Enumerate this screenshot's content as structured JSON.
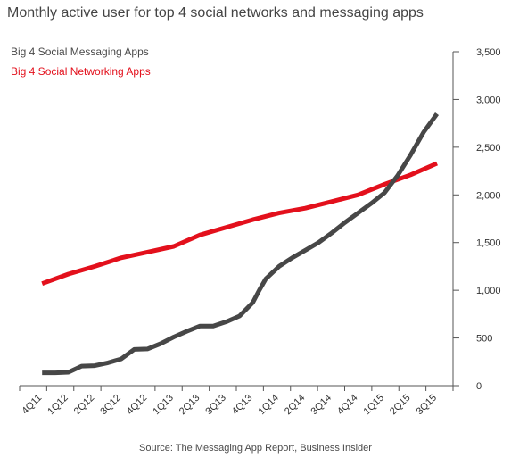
{
  "chart_data": {
    "type": "line",
    "title": "Monthly active user for top 4 social networks and messaging apps",
    "source": "Source: The Messaging App Report, Business Insider",
    "categories": [
      "4Q11",
      "1Q12",
      "2Q12",
      "3Q12",
      "4Q12",
      "1Q13",
      "2Q13",
      "3Q13",
      "4Q13",
      "1Q14",
      "2Q14",
      "3Q14",
      "4Q14",
      "1Q15",
      "2Q15",
      "3Q15"
    ],
    "ylim": [
      0,
      3500
    ],
    "yticks": [
      "0",
      "500",
      "1,000",
      "1,500",
      "2,000",
      "2,500",
      "3,000",
      "3,500"
    ],
    "ytick_values": [
      0,
      500,
      1000,
      1500,
      2000,
      2500,
      3000,
      3500
    ],
    "legend_position": "top-left",
    "grid": false,
    "series": [
      {
        "name": "Big 4 Social Messaging Apps",
        "color": "#474747",
        "x": [
          0,
          0.5,
          1,
          1.5,
          2,
          2.5,
          3,
          3.5,
          4,
          4.5,
          5,
          5.5,
          6,
          6.5,
          7,
          7.5,
          8,
          8.25,
          8.5,
          9,
          9.5,
          10,
          10.5,
          11,
          11.5,
          12,
          12.5,
          13,
          13.5,
          14,
          14.5,
          15
        ],
        "values": [
          135,
          135,
          140,
          205,
          210,
          240,
          280,
          380,
          385,
          440,
          510,
          570,
          625,
          625,
          670,
          730,
          870,
          1000,
          1120,
          1250,
          1340,
          1420,
          1500,
          1600,
          1710,
          1810,
          1910,
          2020,
          2200,
          2420,
          2660,
          2850
        ]
      },
      {
        "name": "Big 4 Social Networking Apps",
        "color": "#e3101c",
        "x": [
          0,
          1,
          2,
          3,
          4,
          5,
          6,
          7,
          8,
          9,
          10,
          11,
          12,
          13,
          14,
          15
        ],
        "values": [
          1070,
          1170,
          1250,
          1340,
          1400,
          1460,
          1580,
          1660,
          1740,
          1810,
          1860,
          1930,
          2000,
          2110,
          2210,
          2330
        ]
      }
    ]
  }
}
